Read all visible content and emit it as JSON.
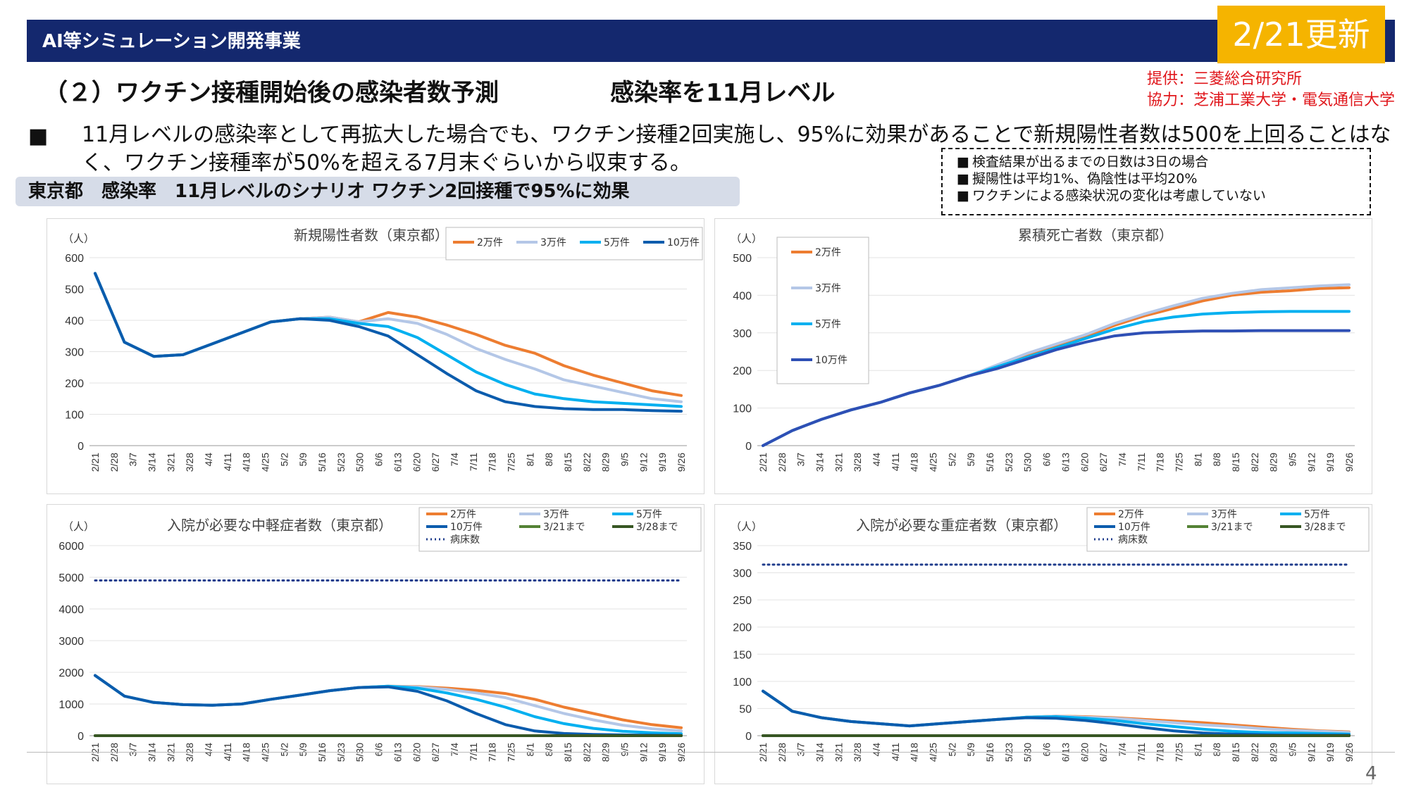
{
  "header": {
    "title": "AI等シミュレーション開発事業",
    "update_badge": "2/21更新"
  },
  "subtitle": {
    "left": "（２）ワクチン接種開始後の感染者数予測",
    "right": "感染率を11月レベル"
  },
  "provider": {
    "line1": "提供：三菱総合研究所",
    "line2": "協力：芝浦工業大学・電気通信大学"
  },
  "summary": {
    "bullet": "■",
    "text": "11月レベルの感染率として再拡大した場合でも、ワクチン接種2回実施し、95%に効果があることで新規陽性者数は500を上回ることはなく、ワクチン接種率が50%を超える7月末ぐらいから収束する。"
  },
  "notes": [
    {
      "bullet": "■",
      "text": "検査結果が出るまでの日数は3日の場合"
    },
    {
      "bullet": "■",
      "text": "擬陽性は平均1%、偽陰性は平均20%"
    },
    {
      "bullet": "■",
      "text": "ワクチンによる感染状況の変化は考慮していない"
    }
  ],
  "scenario_label": "東京都　感染率　11月レベルのシナリオ ワクチン2回接種で95%に効果",
  "page_number": "4",
  "chart_data": [
    {
      "type": "line",
      "title": "新規陽性者数（東京都）",
      "ylabel": "（人）",
      "ylim": [
        0,
        600
      ],
      "yticks": [
        0,
        100,
        200,
        300,
        400,
        500,
        600
      ],
      "xticks": [
        "2/21",
        "2/28",
        "3/7",
        "3/14",
        "3/21",
        "3/28",
        "4/4",
        "4/11",
        "4/18",
        "4/25",
        "5/2",
        "5/9",
        "5/16",
        "5/23",
        "5/30",
        "6/6",
        "6/13",
        "6/20",
        "6/27",
        "7/4",
        "7/11",
        "7/18",
        "7/25",
        "8/1",
        "8/8",
        "8/15",
        "8/22",
        "8/29",
        "9/5",
        "9/12",
        "9/19",
        "9/26"
      ],
      "legend_placement": "top",
      "series": [
        {
          "name": "2万件",
          "color": "#ed7d31",
          "values": [
            550,
            330,
            285,
            290,
            325,
            360,
            395,
            405,
            410,
            395,
            425,
            410,
            385,
            355,
            320,
            295,
            255,
            225,
            200,
            175,
            160
          ]
        },
        {
          "name": "3万件",
          "color": "#b4c7e7",
          "values": [
            550,
            330,
            285,
            290,
            325,
            360,
            395,
            405,
            410,
            395,
            405,
            390,
            355,
            310,
            275,
            245,
            210,
            190,
            170,
            150,
            140
          ]
        },
        {
          "name": "5万件",
          "color": "#00b0f0",
          "values": [
            550,
            330,
            285,
            290,
            325,
            360,
            395,
            405,
            405,
            390,
            380,
            345,
            290,
            235,
            195,
            165,
            150,
            140,
            135,
            130,
            125
          ]
        },
        {
          "name": "10万件",
          "color": "#0b5cad",
          "values": [
            550,
            330,
            285,
            290,
            325,
            360,
            395,
            405,
            400,
            380,
            350,
            290,
            230,
            175,
            140,
            125,
            118,
            115,
            115,
            112,
            110
          ]
        }
      ]
    },
    {
      "type": "line",
      "title": "累積死亡者数（東京都）",
      "ylabel": "（人）",
      "ylim": [
        0,
        500
      ],
      "yticks": [
        0,
        100,
        200,
        300,
        400,
        500
      ],
      "xticks": [
        "2/21",
        "2/28",
        "3/7",
        "3/14",
        "3/21",
        "3/28",
        "4/4",
        "4/11",
        "4/18",
        "4/25",
        "5/2",
        "5/9",
        "5/16",
        "5/23",
        "5/30",
        "6/6",
        "6/13",
        "6/20",
        "6/27",
        "7/4",
        "7/11",
        "7/18",
        "7/25",
        "8/1",
        "8/8",
        "8/15",
        "8/22",
        "8/29",
        "9/5",
        "9/12",
        "9/19",
        "9/26"
      ],
      "legend_placement": "top-left",
      "series": [
        {
          "name": "2万件",
          "color": "#ed7d31",
          "values": [
            0,
            40,
            70,
            95,
            115,
            140,
            160,
            185,
            210,
            240,
            265,
            290,
            320,
            345,
            365,
            385,
            400,
            408,
            412,
            418,
            420
          ]
        },
        {
          "name": "3万件",
          "color": "#b4c7e7",
          "values": [
            0,
            40,
            70,
            95,
            115,
            140,
            160,
            185,
            215,
            245,
            270,
            295,
            325,
            350,
            372,
            392,
            405,
            415,
            420,
            425,
            428
          ]
        },
        {
          "name": "5万件",
          "color": "#00b0f0",
          "values": [
            0,
            40,
            70,
            95,
            115,
            140,
            160,
            185,
            210,
            235,
            260,
            285,
            310,
            330,
            342,
            350,
            354,
            356,
            357,
            357,
            357
          ]
        },
        {
          "name": "10万件",
          "color": "#2e4fb5",
          "values": [
            0,
            40,
            70,
            95,
            115,
            140,
            160,
            185,
            205,
            230,
            255,
            275,
            292,
            300,
            303,
            305,
            305,
            306,
            306,
            306,
            306
          ]
        }
      ]
    },
    {
      "type": "line",
      "title": "入院が必要な中軽症者数（東京都）",
      "ylabel": "（人）",
      "ylim": [
        0,
        6000
      ],
      "yticks": [
        0,
        1000,
        2000,
        3000,
        4000,
        5000,
        6000
      ],
      "xticks": [
        "2/21",
        "2/28",
        "3/7",
        "3/14",
        "3/21",
        "3/28",
        "4/4",
        "4/11",
        "4/18",
        "4/25",
        "5/2",
        "5/9",
        "5/16",
        "5/23",
        "5/30",
        "6/6",
        "6/13",
        "6/20",
        "6/27",
        "7/4",
        "7/11",
        "7/18",
        "7/25",
        "8/1",
        "8/8",
        "8/15",
        "8/22",
        "8/29",
        "9/5",
        "9/12",
        "9/19",
        "9/26"
      ],
      "legend_placement": "top-right",
      "series": [
        {
          "name": "2万件",
          "color": "#ed7d31",
          "values": [
            1900,
            1250,
            1050,
            980,
            960,
            1000,
            1150,
            1280,
            1420,
            1520,
            1560,
            1550,
            1500,
            1430,
            1330,
            1150,
            900,
            700,
            500,
            350,
            250
          ]
        },
        {
          "name": "3万件",
          "color": "#b4c7e7",
          "values": [
            1900,
            1250,
            1050,
            980,
            960,
            1000,
            1150,
            1280,
            1420,
            1520,
            1560,
            1540,
            1460,
            1350,
            1200,
            950,
            700,
            500,
            330,
            220,
            150
          ]
        },
        {
          "name": "5万件",
          "color": "#00b0f0",
          "values": [
            1900,
            1250,
            1050,
            980,
            960,
            1000,
            1150,
            1280,
            1420,
            1520,
            1560,
            1500,
            1350,
            1150,
            900,
            600,
            380,
            230,
            140,
            90,
            60
          ]
        },
        {
          "name": "10万件",
          "color": "#0b5cad",
          "values": [
            1900,
            1250,
            1050,
            980,
            960,
            1000,
            1150,
            1280,
            1420,
            1520,
            1540,
            1400,
            1100,
            700,
            350,
            150,
            70,
            40,
            25,
            15,
            10
          ]
        },
        {
          "name": "3/21まで",
          "color": "#548235",
          "values": [
            0,
            0,
            0,
            0,
            0,
            0,
            0,
            0,
            0,
            0,
            0,
            0,
            0,
            0,
            0,
            0,
            0,
            0,
            0,
            0,
            0
          ]
        },
        {
          "name": "3/28まで",
          "color": "#375623",
          "values": [
            0,
            0,
            0,
            0,
            0,
            0,
            0,
            0,
            0,
            0,
            0,
            0,
            0,
            0,
            0,
            0,
            0,
            0,
            0,
            0,
            0
          ]
        },
        {
          "name": "病床数",
          "color": "#1f3c8c",
          "dotted": true,
          "values": [
            4900,
            4900,
            4900,
            4900,
            4900,
            4900,
            4900,
            4900,
            4900,
            4900,
            4900,
            4900,
            4900,
            4900,
            4900,
            4900,
            4900,
            4900,
            4900,
            4900,
            4900
          ]
        }
      ]
    },
    {
      "type": "line",
      "title": "入院が必要な重症者数（東京都）",
      "ylabel": "（人）",
      "ylim": [
        0,
        350
      ],
      "yticks": [
        0,
        50,
        100,
        150,
        200,
        250,
        300,
        350
      ],
      "xticks": [
        "2/21",
        "2/28",
        "3/7",
        "3/14",
        "3/21",
        "3/28",
        "4/4",
        "4/11",
        "4/18",
        "4/25",
        "5/2",
        "5/9",
        "5/16",
        "5/23",
        "5/30",
        "6/6",
        "6/13",
        "6/20",
        "6/27",
        "7/4",
        "7/11",
        "7/18",
        "7/25",
        "8/1",
        "8/8",
        "8/15",
        "8/22",
        "8/29",
        "9/5",
        "9/12",
        "9/19",
        "9/26"
      ],
      "legend_placement": "top-right",
      "series": [
        {
          "name": "2万件",
          "color": "#ed7d31",
          "values": [
            82,
            45,
            33,
            26,
            22,
            18,
            22,
            26,
            30,
            34,
            36,
            35,
            33,
            30,
            27,
            24,
            20,
            16,
            12,
            9,
            7
          ]
        },
        {
          "name": "3万件",
          "color": "#b4c7e7",
          "values": [
            82,
            45,
            33,
            26,
            22,
            18,
            22,
            26,
            30,
            34,
            36,
            34,
            32,
            28,
            24,
            20,
            17,
            13,
            10,
            8,
            6
          ]
        },
        {
          "name": "5万件",
          "color": "#00b0f0",
          "values": [
            82,
            45,
            33,
            26,
            22,
            18,
            22,
            26,
            30,
            34,
            35,
            32,
            28,
            22,
            17,
            12,
            8,
            6,
            5,
            4,
            3
          ]
        },
        {
          "name": "10万件",
          "color": "#0b5cad",
          "values": [
            82,
            45,
            33,
            26,
            22,
            18,
            22,
            26,
            30,
            33,
            32,
            28,
            22,
            15,
            9,
            5,
            3,
            2,
            1,
            1,
            1
          ]
        },
        {
          "name": "3/21まで",
          "color": "#548235",
          "values": [
            0,
            0,
            0,
            0,
            0,
            0,
            0,
            0,
            0,
            0,
            0,
            0,
            0,
            0,
            0,
            0,
            0,
            0,
            0,
            0,
            0
          ]
        },
        {
          "name": "3/28まで",
          "color": "#375623",
          "values": [
            0,
            0,
            0,
            0,
            0,
            0,
            0,
            0,
            0,
            0,
            0,
            0,
            0,
            0,
            0,
            0,
            0,
            0,
            0,
            0,
            0
          ]
        },
        {
          "name": "病床数",
          "color": "#1f3c8c",
          "dotted": true,
          "values": [
            315,
            315,
            315,
            315,
            315,
            315,
            315,
            315,
            315,
            315,
            315,
            315,
            315,
            315,
            315,
            315,
            315,
            315,
            315,
            315,
            315
          ]
        }
      ]
    }
  ]
}
